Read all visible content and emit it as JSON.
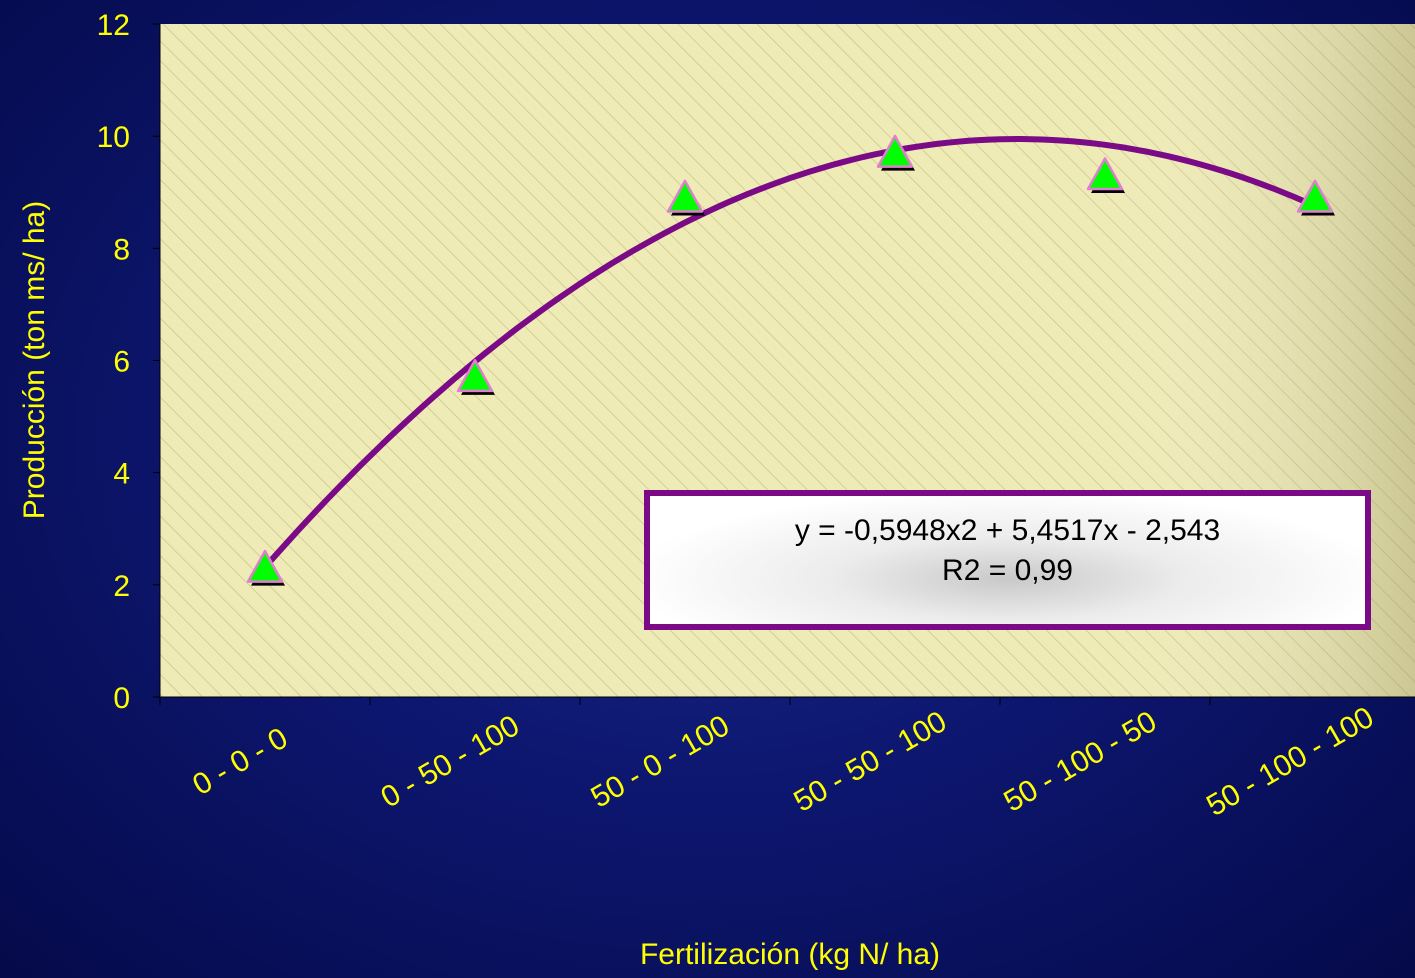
{
  "chart_data": {
    "type": "scatter",
    "categories": [
      "0 - 0 - 0",
      "0 - 50 - 100",
      "50 - 0 - 100",
      "50 - 50 - 100",
      "50 - 100 - 50",
      "50 - 100 - 100"
    ],
    "values": [
      2.3,
      5.7,
      8.9,
      9.7,
      9.3,
      8.9
    ],
    "xlabel": "Fertilización (kg N/ ha)",
    "ylabel": "Producción (ton ms/ ha)",
    "ylim": [
      0,
      12
    ],
    "yticks": [
      "0",
      "2",
      "4",
      "6",
      "8",
      "10",
      "12"
    ],
    "trendline": {
      "type": "polynomial",
      "coefficients": [
        -0.5948,
        5.4517,
        -2.543
      ],
      "equation": "y = -0,5948x2 + 5,4517x - 2,543",
      "r2": "R2 = 0,99",
      "color": "#7a0a86"
    },
    "marker": {
      "shape": "triangle",
      "color": "#00ff00"
    },
    "plot_background": "#f0ecb8",
    "grid": false
  }
}
